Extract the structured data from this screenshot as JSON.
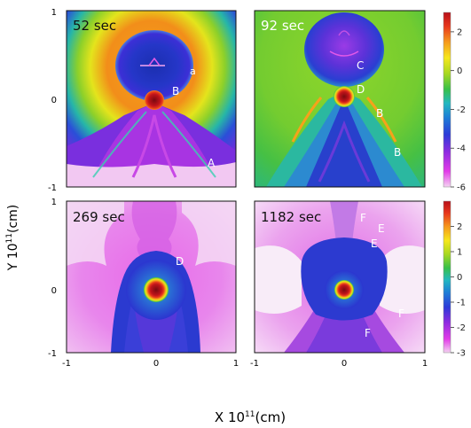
{
  "figure": {
    "ylabel_main": "Y 10",
    "ylabel_exp": "11",
    "ylabel_unit": "(cm)",
    "xlabel_main": "X 10",
    "xlabel_exp": "11",
    "xlabel_unit": "(cm)"
  },
  "chart_data": [
    {
      "type": "heatmap",
      "title": "52 sec",
      "xlim": [
        -1,
        1
      ],
      "ylim": [
        -1,
        1
      ],
      "xticks": [],
      "yticks": [
        "1",
        "0",
        "-1"
      ],
      "scale": "top",
      "annotations": [
        "a",
        "B",
        "A"
      ]
    },
    {
      "type": "heatmap",
      "title": "92 sec",
      "xlim": [
        -1,
        1
      ],
      "ylim": [
        -1,
        1
      ],
      "xticks": [],
      "yticks": [],
      "scale": "top",
      "annotations": [
        "C",
        "D",
        "B",
        "B"
      ]
    },
    {
      "type": "heatmap",
      "title": "269 sec",
      "xlim": [
        -1,
        1
      ],
      "ylim": [
        -1,
        1
      ],
      "xticks": [
        "-1",
        "0",
        "1"
      ],
      "yticks": [
        "1",
        "0",
        "-1"
      ],
      "scale": "bottom",
      "annotations": [
        "D"
      ]
    },
    {
      "type": "heatmap",
      "title": "1182 sec",
      "xlim": [
        -1,
        1
      ],
      "ylim": [
        -1,
        1
      ],
      "xticks": [
        "-1",
        "0",
        "1"
      ],
      "yticks": [],
      "scale": "bottom",
      "annotations": [
        "F",
        "E",
        "E",
        "F",
        "F"
      ]
    }
  ],
  "colorbars": {
    "top": {
      "range": [
        -6,
        3
      ],
      "ticks": [
        "2",
        "0",
        "-2",
        "-4",
        "-6"
      ]
    },
    "bottom": {
      "range": [
        -3,
        3
      ],
      "ticks": [
        "2",
        "1",
        "0",
        "-1",
        "-2",
        "-3"
      ]
    },
    "colors": [
      "#f4d3f1",
      "#e23be8",
      "#8e2be0",
      "#2d3bd8",
      "#1e7fd6",
      "#23b8c0",
      "#38c048",
      "#a8d820",
      "#f6e71c",
      "#f69a1c",
      "#e8381c",
      "#b8101a"
    ]
  }
}
